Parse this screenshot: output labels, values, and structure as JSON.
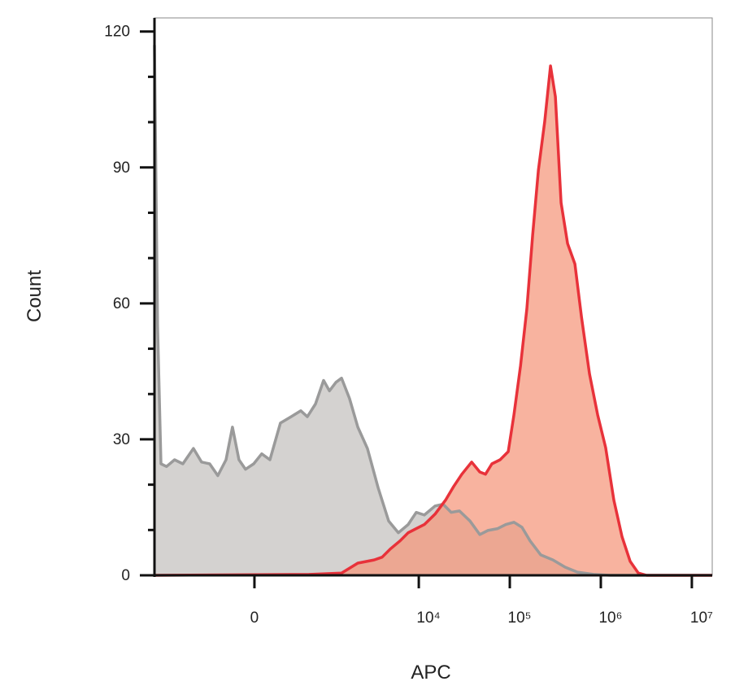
{
  "chart_data": {
    "type": "area",
    "xscale": "arcsinh",
    "xlabel": "APC",
    "ylabel": "Count",
    "xlim": [
      -1950,
      16750000
    ],
    "xticks": [
      0,
      {
        "value": 10000,
        "label": "10⁴"
      },
      {
        "value": 100000,
        "label": "10⁵"
      },
      {
        "value": 1000000,
        "label": "10⁶"
      },
      {
        "value": 10000000,
        "label": "10⁷"
      }
    ],
    "ylim": [
      0,
      123
    ],
    "yticks": [
      0,
      30,
      60,
      90,
      120
    ],
    "yminorticks": [
      10,
      20,
      40,
      50,
      70,
      80,
      100,
      110
    ],
    "series": [
      {
        "color": "#9a9a9a",
        "fill": "#d4d2d0",
        "x": [
          -1950,
          -1800,
          -1650,
          -1430,
          -1160,
          -932,
          -699,
          -555,
          -435,
          -333,
          -245,
          -183,
          -126,
          -71,
          -6,
          58,
          126,
          221,
          333,
          457,
          555,
          699,
          873,
          1020,
          1210,
          1400,
          1720,
          2130,
          2720,
          3570,
          4660,
          5970,
          7640,
          9390,
          11500,
          15100,
          18500,
          22700,
          28000,
          36500,
          46800,
          57400,
          73500,
          90300,
          111000,
          136000,
          167000,
          219000,
          298000,
          406000,
          553000,
          833000,
          1260000,
          16750000
        ],
        "values": [
          117,
          55,
          24.6,
          24,
          25.5,
          24.6,
          28,
          25,
          24.6,
          22,
          25.5,
          32.7,
          25.5,
          23.4,
          24.6,
          26.8,
          25.5,
          33.6,
          35,
          36.3,
          35,
          37.8,
          43,
          40.7,
          42.6,
          43.5,
          39,
          32.7,
          28,
          19.3,
          12,
          9.4,
          11.2,
          13.9,
          13.3,
          15.3,
          15.7,
          13.9,
          14.2,
          12,
          9,
          9.9,
          10.3,
          11.2,
          11.7,
          10.6,
          7.6,
          4.5,
          3.4,
          1.8,
          0.7,
          0.2,
          0,
          0
        ]
      },
      {
        "color": "#e8323a",
        "fill": "#f5967a",
        "x": [
          -1950,
          582,
          1400,
          2130,
          3220,
          3950,
          4860,
          6220,
          7640,
          9390,
          11500,
          15100,
          19700,
          24200,
          29700,
          38100,
          46800,
          54000,
          63600,
          78200,
          96100,
          111000,
          131000,
          154000,
          178000,
          206000,
          242000,
          280000,
          317000,
          366000,
          431000,
          519000,
          613000,
          751000,
          923000,
          1130000,
          1390000,
          1710000,
          2100000,
          2580000,
          3180000,
          16750000
        ],
        "values": [
          0,
          0.2,
          0.5,
          2.7,
          3.4,
          4,
          5.8,
          7.6,
          9.4,
          10.3,
          11.2,
          13.5,
          16.6,
          19.6,
          22.3,
          25,
          22.8,
          22.3,
          24.6,
          25.5,
          27.3,
          35.4,
          46.2,
          58.8,
          75,
          89.4,
          100.2,
          112.4,
          105.6,
          82.2,
          73.2,
          68.7,
          57,
          44.4,
          35.4,
          28.2,
          16.6,
          8.5,
          3.1,
          0.5,
          0,
          0
        ]
      }
    ]
  }
}
